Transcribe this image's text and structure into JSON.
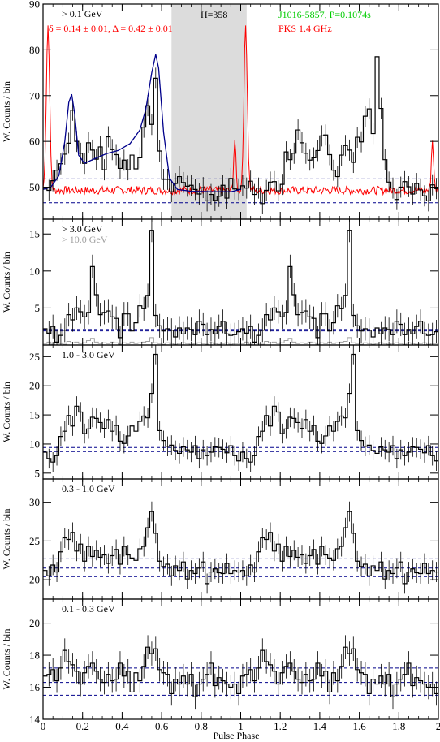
{
  "figure": {
    "xlabel": "Pulse Phase"
  },
  "colors": {
    "histogram": "#000000",
    "fit": "#00008b",
    "radio": "#ff0000",
    "shade": "#dcdcdc",
    "background_line": "#00008b",
    "grey_hist": "#a0a0a0",
    "green_text": "#00cc00",
    "red_text": "#ff0000",
    "grey_text": "#a0a0a0"
  },
  "chart_data": [
    {
      "type": "bar",
      "panel": "top",
      "ylabel": "W. Counts / bin",
      "ylim": [
        43,
        90
      ],
      "yticks": [
        50,
        60,
        70,
        80,
        90
      ],
      "xlim": [
        0,
        2
      ],
      "xticks": [
        0,
        0.2,
        0.4,
        0.6,
        0.8,
        1,
        1.2,
        1.4,
        1.6,
        1.8,
        2
      ],
      "annotations": {
        "band": "> 0.1 GeV",
        "htest": "H=358",
        "pulsar": "J1016-5857, P=0.1074s",
        "phases": "δ = 0.14 ± 0.01, Δ = 0.42 ± 0.01",
        "radio": "PKS 1.4 GHz"
      },
      "shaded_phase": [
        0.65,
        1.03
      ],
      "background_levels": [
        46.6,
        51.8
      ],
      "series": [
        {
          "kind": "histogram",
          "values": [
            49.6,
            49.3,
            51.4,
            53.7,
            55.1,
            57.2,
            59.6,
            66.8,
            60.0,
            57.4,
            55.2,
            59.7,
            58.1,
            56.1,
            58.8,
            53.8,
            61.0,
            58.2,
            57.1,
            54.1,
            55.9,
            53.8,
            57.0,
            54.0,
            56.4,
            63.1,
            67.8,
            63.7,
            73.8,
            57.9,
            51.7,
            51.7,
            49.0,
            50.8,
            52.3,
            51.0,
            50.2,
            50.4,
            49.5,
            48.5,
            49.9,
            47.0,
            48.4,
            47.1,
            48.0,
            50.4,
            47.6,
            51.9,
            49.6,
            49.5,
            50.3,
            49.8,
            51.3,
            48.4,
            49.8,
            46.4,
            49.3,
            51.1,
            51.2,
            49.2,
            50.6,
            57.7,
            56.0,
            57.4,
            62.5,
            59.7,
            57.4,
            55.9,
            56.4,
            58.0,
            61.2,
            61.4,
            57.1,
            53.7,
            52.3,
            57.0,
            59.1,
            58.1,
            55.4,
            60.9,
            59.9,
            65.5,
            67.1,
            61.7,
            78.5,
            67.2,
            56.0,
            51.1,
            49.8,
            47.3,
            50.0,
            51.2,
            50.1,
            48.5,
            50.8,
            49.4,
            48.1,
            47.0,
            50.5,
            49.7
          ]
        },
        {
          "kind": "fit",
          "points": [
            [
              0.0,
              49.5
            ],
            [
              0.04,
              50
            ],
            [
              0.08,
              52.5
            ],
            [
              0.11,
              60
            ],
            [
              0.13,
              68.5
            ],
            [
              0.145,
              70.3
            ],
            [
              0.16,
              66
            ],
            [
              0.18,
              57
            ],
            [
              0.21,
              55.2
            ],
            [
              0.26,
              56.2
            ],
            [
              0.32,
              57.3
            ],
            [
              0.38,
              58
            ],
            [
              0.44,
              59.5
            ],
            [
              0.49,
              62.5
            ],
            [
              0.52,
              67
            ],
            [
              0.55,
              75
            ],
            [
              0.57,
              79
            ],
            [
              0.585,
              76
            ],
            [
              0.61,
              62
            ],
            [
              0.64,
              52
            ],
            [
              0.68,
              49.5
            ],
            [
              0.75,
              49.1
            ],
            [
              0.85,
              49.0
            ],
            [
              0.95,
              49.0
            ],
            [
              1.0,
              49.5
            ]
          ]
        }
      ]
    },
    {
      "type": "bar",
      "panel": "> 3.0 GeV",
      "ylabel": "W. Counts / bin",
      "ylim": [
        0,
        17
      ],
      "yticks": [
        5,
        10,
        15
      ],
      "annotations": {
        "band": "> 3.0 GeV",
        "band2": "> 10.0 GeV"
      },
      "background_levels": [
        1.9,
        2.1
      ],
      "series": [
        {
          "kind": "histogram",
          "values": [
            2.2,
            1.6,
            2.5,
            0.4,
            1.3,
            2.0,
            4.1,
            3.4,
            5.0,
            4.5,
            3.8,
            4.4,
            10.6,
            6.8,
            4.1,
            4.4,
            4.6,
            3.8,
            3.6,
            1.0,
            4.2,
            4.2,
            1.9,
            3.0,
            5.3,
            4.9,
            6.7,
            15.5,
            4.0,
            2.6,
            1.9,
            2.2,
            2.0,
            1.1,
            2.3,
            1.5,
            2.3,
            2.1,
            1.4,
            3.2,
            2.8,
            1.4,
            2.1,
            1.5,
            2.5,
            3.2,
            1.5,
            1.3,
            1.4,
            1.8,
            2.2,
            1.6,
            2.5,
            0.4,
            1.3,
            2.0,
            4.1,
            3.4,
            5.0,
            4.5,
            3.8,
            4.4,
            10.6,
            6.8,
            4.1,
            4.4,
            4.6,
            3.8,
            3.6,
            1.0,
            4.2,
            4.2,
            1.9,
            3.0,
            5.3,
            4.9,
            6.7,
            15.5,
            4.0,
            2.6,
            1.9,
            2.2,
            2.0,
            1.1,
            2.3,
            1.5,
            2.3,
            2.1,
            1.4,
            3.2,
            2.8,
            1.4,
            2.1,
            1.5,
            2.5,
            3.2,
            1.5,
            1.3,
            1.4,
            1.8
          ]
        },
        {
          "kind": "grey_histogram",
          "values": [
            0.2,
            0.4,
            0.1,
            0.3,
            0.2,
            0.1,
            0.5,
            0.3,
            0.4,
            0.2,
            0.3,
            0.6,
            0.9,
            0.4,
            0.2,
            0.3,
            0.2,
            0.4,
            0.3,
            0.1,
            0.3,
            0.2,
            0.4,
            0.2,
            0.3,
            0.4,
            0.5,
            1.0,
            0.3,
            0.2,
            0.1,
            0.3,
            0.2,
            0.1,
            0.2,
            0.3,
            0.2,
            0.1,
            0.2,
            0.3,
            0.2,
            0.1,
            0.3,
            0.2,
            0.1,
            0.2,
            0.3,
            0.1,
            0.2,
            0.2,
            0.2,
            0.4,
            0.1,
            0.3,
            0.2,
            0.1,
            0.5,
            0.3,
            0.4,
            0.2,
            0.3,
            0.6,
            0.9,
            0.4,
            0.2,
            0.3,
            0.2,
            0.4,
            0.3,
            0.1,
            0.3,
            0.2,
            0.4,
            0.2,
            0.3,
            0.4,
            0.5,
            1.0,
            0.3,
            0.2,
            0.1,
            0.3,
            0.2,
            0.1,
            0.2,
            0.3,
            0.2,
            0.1,
            0.2,
            0.3,
            0.2,
            0.1,
            0.3,
            0.2,
            0.1,
            0.2,
            0.3,
            0.1,
            0.2,
            0.2
          ]
        }
      ]
    },
    {
      "type": "bar",
      "panel": "1.0 - 3.0 GeV",
      "ylabel": "W. Counts / bin",
      "ylim": [
        4,
        27
      ],
      "yticks": [
        5,
        10,
        15,
        20,
        25
      ],
      "annotations": {
        "band": "1.0 - 3.0 GeV"
      },
      "background_levels": [
        8.7,
        9.4
      ],
      "series": [
        {
          "kind": "histogram",
          "values": [
            8.6,
            7.5,
            6.9,
            8.0,
            11.3,
            12.2,
            14.9,
            13.1,
            16.5,
            15.5,
            11.8,
            12.6,
            14.6,
            14.4,
            13.7,
            12.7,
            14.2,
            12.2,
            13.2,
            10.5,
            10.1,
            11.4,
            13.1,
            12.2,
            13.9,
            14.8,
            14.5,
            18.7,
            25.4,
            12.3,
            10.6,
            9.6,
            9.8,
            8.9,
            8.4,
            9.5,
            9.0,
            8.6,
            9.7,
            7.5,
            9.0,
            8.0,
            8.6,
            9.5,
            9.4,
            9.1,
            8.5,
            9.7,
            8.0,
            7.1,
            8.6,
            7.5,
            6.9,
            8.0,
            11.3,
            12.2,
            14.9,
            13.1,
            16.5,
            15.5,
            11.8,
            12.6,
            14.6,
            14.4,
            13.7,
            12.7,
            14.2,
            12.2,
            13.2,
            10.5,
            10.1,
            11.4,
            13.1,
            12.2,
            13.9,
            14.8,
            14.5,
            18.7,
            25.4,
            12.3,
            10.6,
            9.6,
            9.8,
            8.9,
            8.4,
            9.5,
            9.0,
            8.6,
            9.7,
            7.5,
            9.0,
            8.0,
            8.6,
            9.5,
            9.4,
            9.1,
            8.5,
            9.7,
            8.0,
            7.1
          ]
        }
      ]
    },
    {
      "type": "bar",
      "panel": "0.3 - 1.0 GeV",
      "ylabel": "W. Counts / bin",
      "ylim": [
        17.5,
        33
      ],
      "yticks": [
        20,
        25,
        30
      ],
      "annotations": {
        "band": "0.3 - 1.0 GeV"
      },
      "background_levels": [
        20.4,
        21.5,
        22.7
      ],
      "series": [
        {
          "kind": "histogram",
          "values": [
            21.2,
            20.5,
            21.9,
            21.0,
            23.6,
            25.4,
            25.2,
            26.1,
            23.7,
            24.6,
            22.4,
            24.3,
            23.0,
            23.8,
            22.9,
            23.2,
            22.1,
            23.1,
            23.9,
            22.0,
            24.3,
            23.2,
            22.8,
            22.5,
            24.0,
            24.3,
            26.7,
            28.8,
            26.0,
            22.4,
            21.7,
            22.0,
            20.5,
            21.8,
            21.2,
            22.3,
            20.1,
            21.2,
            20.8,
            21.5,
            22.3,
            19.5,
            21.0,
            21.4,
            20.9,
            20.8,
            22.1,
            20.8,
            21.2,
            21.0,
            21.2,
            20.5,
            21.9,
            21.0,
            23.6,
            25.4,
            25.2,
            26.1,
            23.7,
            24.6,
            22.4,
            24.3,
            23.0,
            23.8,
            22.9,
            23.2,
            22.1,
            23.1,
            23.9,
            22.0,
            24.3,
            23.2,
            22.8,
            22.5,
            24.0,
            24.3,
            26.7,
            28.8,
            26.0,
            22.4,
            21.7,
            22.0,
            20.5,
            21.8,
            21.2,
            22.3,
            20.1,
            21.2,
            20.8,
            21.5,
            22.3,
            19.5,
            21.0,
            21.4,
            20.9,
            20.8,
            22.1,
            20.8,
            21.2,
            21.0
          ]
        }
      ]
    },
    {
      "type": "bar",
      "panel": "0.1 - 0.3 GeV",
      "ylabel": "W. Counts / bin",
      "ylim": [
        14,
        21.5
      ],
      "yticks": [
        14,
        16,
        18,
        20
      ],
      "annotations": {
        "band": "0.1 - 0.3 GeV"
      },
      "background_levels": [
        15.5,
        16.3,
        17.2
      ],
      "series": [
        {
          "kind": "histogram",
          "values": [
            16.7,
            16.8,
            17.1,
            16.4,
            17.2,
            18.3,
            17.6,
            17.4,
            17.0,
            16.2,
            16.9,
            17.3,
            17.5,
            17.0,
            16.5,
            16.3,
            16.8,
            16.4,
            16.5,
            17.5,
            16.7,
            17.0,
            15.7,
            16.9,
            16.4,
            17.3,
            18.5,
            18.1,
            18.4,
            17.1,
            16.9,
            16.8,
            15.6,
            16.5,
            16.2,
            16.7,
            16.2,
            16.8,
            15.4,
            16.2,
            16.5,
            16.8,
            17.5,
            16.1,
            16.6,
            16.4,
            16.2,
            16.0,
            16.2,
            15.6,
            16.7,
            16.8,
            17.1,
            16.4,
            17.2,
            18.3,
            17.6,
            17.4,
            17.0,
            16.2,
            16.9,
            17.3,
            17.5,
            17.0,
            16.5,
            16.3,
            16.8,
            16.4,
            16.5,
            17.5,
            16.7,
            17.0,
            15.7,
            16.9,
            16.4,
            17.3,
            18.5,
            18.1,
            18.4,
            17.1,
            16.9,
            16.8,
            15.6,
            16.5,
            16.2,
            16.7,
            16.2,
            16.8,
            15.4,
            16.2,
            16.5,
            16.8,
            17.5,
            16.1,
            16.6,
            16.4,
            16.2,
            16.0,
            16.2,
            15.6
          ]
        }
      ]
    }
  ]
}
